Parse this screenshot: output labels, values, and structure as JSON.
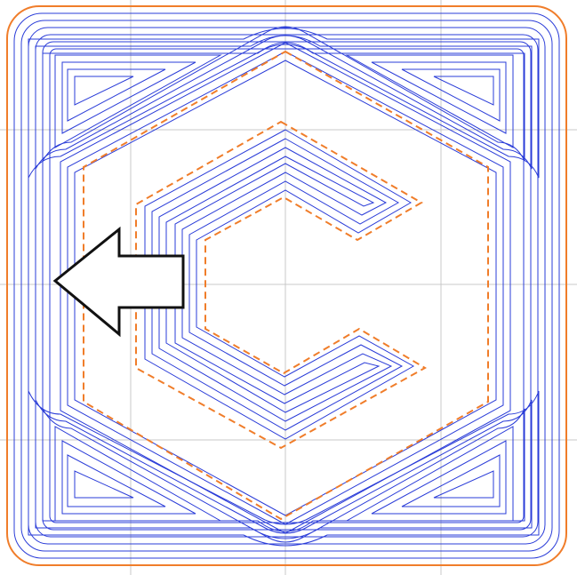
{
  "colors": {
    "background": "#ffffff",
    "grid": "#c8c8c8",
    "outline": "#f07d2a",
    "toolpath": "#2a3cd8",
    "arrow": "#111111"
  },
  "loop_counts": {
    "outer_square": 6,
    "corner_triangle": 4,
    "c_shape": 4
  },
  "icons": {
    "direction_arrow": "left-arrow-icon"
  }
}
